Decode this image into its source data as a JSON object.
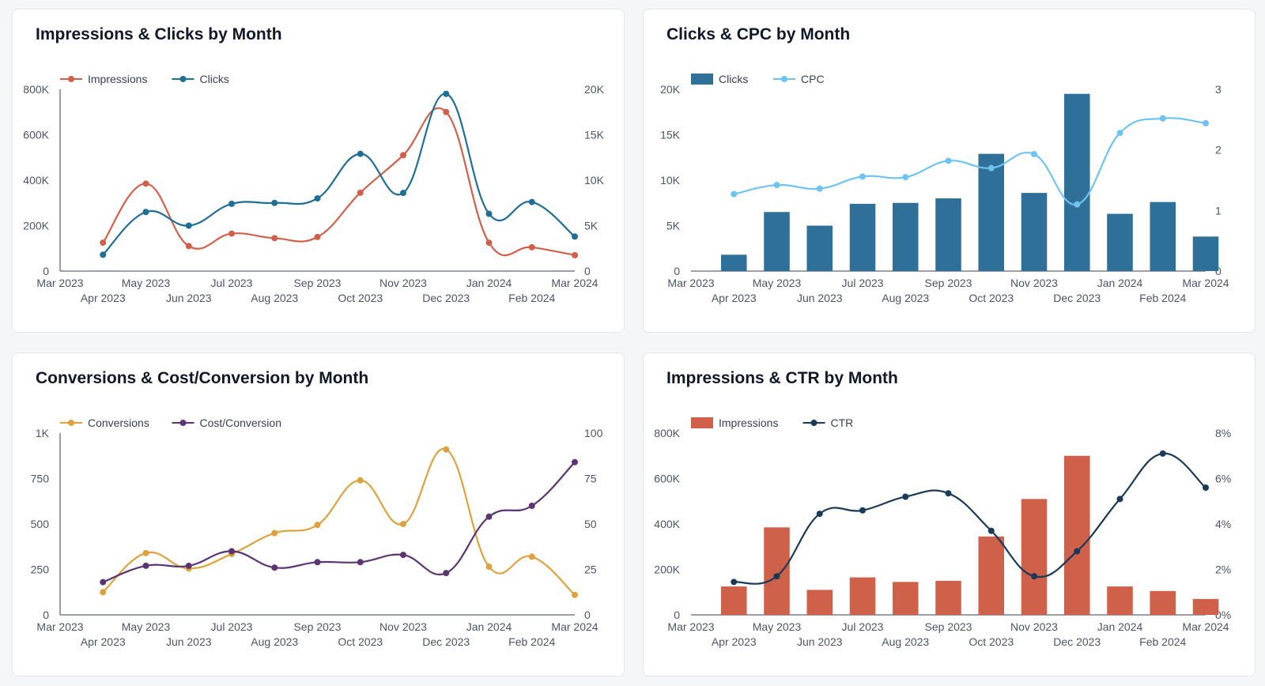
{
  "chart_data": [
    {
      "id": "impressions-clicks",
      "type": "line",
      "title": "Impressions & Clicks by Month",
      "x": [
        "Mar 2023",
        "Apr 2023",
        "May 2023",
        "Jun 2023",
        "Jul 2023",
        "Aug 2023",
        "Sep 2023",
        "Oct 2023",
        "Nov 2023",
        "Dec 2023",
        "Jan 2024",
        "Feb 2024",
        "Mar 2024"
      ],
      "y_left": {
        "min": 0,
        "max": 800000,
        "ticks": [
          0,
          200000,
          400000,
          600000,
          800000
        ],
        "tick_labels": [
          "0",
          "200K",
          "400K",
          "600K",
          "800K"
        ]
      },
      "y_right": {
        "min": 0,
        "max": 20000,
        "ticks": [
          0,
          5000,
          10000,
          15000,
          20000
        ],
        "tick_labels": [
          "0",
          "5K",
          "10K",
          "15K",
          "20K"
        ]
      },
      "series": [
        {
          "name": "Impressions",
          "kind": "line",
          "axis": "left",
          "color": "#d0604a",
          "values": [
            null,
            125000,
            385000,
            110000,
            165000,
            145000,
            150000,
            345000,
            510000,
            700000,
            125000,
            105000,
            70000
          ]
        },
        {
          "name": "Clicks",
          "kind": "line",
          "axis": "right",
          "color": "#1f6e96",
          "values": [
            null,
            1800,
            6500,
            5000,
            7400,
            7500,
            8000,
            12900,
            8600,
            19500,
            6300,
            7600,
            3800
          ]
        }
      ]
    },
    {
      "id": "clicks-cpc",
      "type": "bar",
      "title": "Clicks & CPC by Month",
      "x": [
        "Mar 2023",
        "Apr 2023",
        "May 2023",
        "Jun 2023",
        "Jul 2023",
        "Aug 2023",
        "Sep 2023",
        "Oct 2023",
        "Nov 2023",
        "Dec 2023",
        "Jan 2024",
        "Feb 2024",
        "Mar 2024"
      ],
      "y_left": {
        "min": 0,
        "max": 20000,
        "ticks": [
          0,
          5000,
          10000,
          15000,
          20000
        ],
        "tick_labels": [
          "0",
          "5K",
          "10K",
          "15K",
          "20K"
        ]
      },
      "y_right": {
        "min": 0,
        "max": 3,
        "ticks": [
          0,
          1,
          2,
          3
        ],
        "tick_labels": [
          "0",
          "1",
          "2",
          "3"
        ]
      },
      "series": [
        {
          "name": "Clicks",
          "kind": "bar",
          "axis": "left",
          "color": "#2e7097",
          "values": [
            null,
            1800,
            6500,
            5000,
            7400,
            7500,
            8000,
            12900,
            8600,
            19500,
            6300,
            7600,
            3800
          ]
        },
        {
          "name": "CPC",
          "kind": "line",
          "axis": "right",
          "color": "#6ec3f0",
          "values": [
            null,
            1.27,
            1.42,
            1.36,
            1.56,
            1.55,
            1.82,
            1.7,
            1.93,
            1.1,
            2.28,
            2.52,
            2.44
          ]
        }
      ]
    },
    {
      "id": "conversions-cost",
      "type": "line",
      "title": "Conversions & Cost/Conversion by Month",
      "x": [
        "Mar 2023",
        "Apr 2023",
        "May 2023",
        "Jun 2023",
        "Jul 2023",
        "Aug 2023",
        "Sep 2023",
        "Oct 2023",
        "Nov 2023",
        "Dec 2023",
        "Jan 2024",
        "Feb 2024",
        "Mar 2024"
      ],
      "y_left": {
        "min": 0,
        "max": 1000,
        "ticks": [
          0,
          250,
          500,
          750,
          1000
        ],
        "tick_labels": [
          "0",
          "250",
          "500",
          "750",
          "1K"
        ]
      },
      "y_right": {
        "min": 0,
        "max": 100,
        "ticks": [
          0,
          25,
          50,
          75,
          100
        ],
        "tick_labels": [
          "0",
          "25",
          "50",
          "75",
          "100"
        ]
      },
      "series": [
        {
          "name": "Conversions",
          "kind": "line",
          "axis": "left",
          "color": "#dda23e",
          "values": [
            null,
            125,
            340,
            255,
            335,
            450,
            495,
            740,
            500,
            910,
            265,
            320,
            110
          ]
        },
        {
          "name": "Cost/Conversion",
          "kind": "line",
          "axis": "right",
          "color": "#5b3473",
          "values": [
            null,
            18,
            27,
            27,
            35,
            26,
            29,
            29,
            33,
            23,
            54,
            60,
            84
          ]
        }
      ]
    },
    {
      "id": "impressions-ctr",
      "type": "bar",
      "title": "Impressions & CTR by Month",
      "x": [
        "Mar 2023",
        "Apr 2023",
        "May 2023",
        "Jun 2023",
        "Jul 2023",
        "Aug 2023",
        "Sep 2023",
        "Oct 2023",
        "Nov 2023",
        "Dec 2023",
        "Jan 2024",
        "Feb 2024",
        "Mar 2024"
      ],
      "y_left": {
        "min": 0,
        "max": 800000,
        "ticks": [
          0,
          200000,
          400000,
          600000,
          800000
        ],
        "tick_labels": [
          "0",
          "200K",
          "400K",
          "600K",
          "800K"
        ]
      },
      "y_right": {
        "min": 0,
        "max": 8,
        "ticks": [
          0,
          2,
          4,
          6,
          8
        ],
        "tick_labels": [
          "0%",
          "2%",
          "4%",
          "6%",
          "8%"
        ]
      },
      "series": [
        {
          "name": "Impressions",
          "kind": "bar",
          "axis": "left",
          "color": "#cf614a",
          "values": [
            null,
            125000,
            385000,
            110000,
            165000,
            145000,
            150000,
            345000,
            510000,
            700000,
            125000,
            105000,
            70000
          ]
        },
        {
          "name": "CTR",
          "kind": "line",
          "axis": "right",
          "color": "#1b3a57",
          "values": [
            null,
            1.45,
            1.7,
            4.45,
            4.6,
            5.2,
            5.35,
            3.7,
            1.7,
            2.8,
            5.1,
            7.1,
            5.6
          ]
        }
      ]
    }
  ]
}
